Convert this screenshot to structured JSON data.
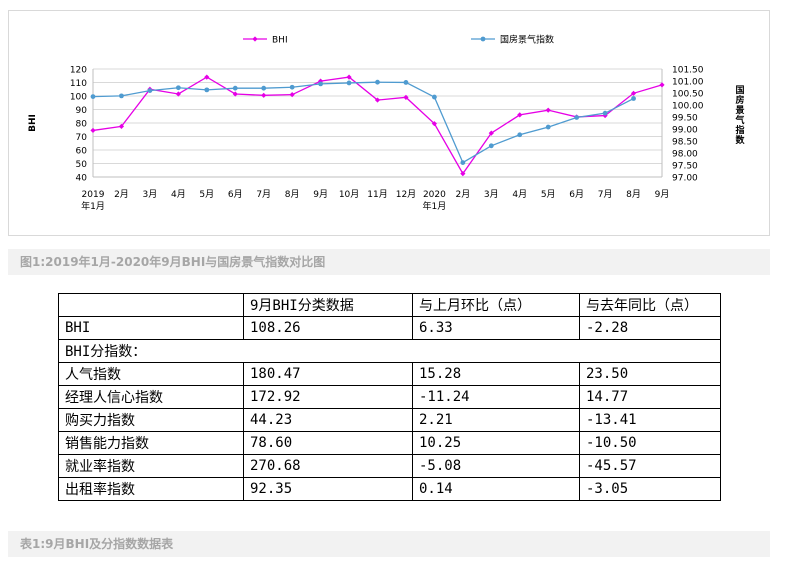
{
  "chart_data": {
    "type": "line",
    "categories": [
      "2019\n年1月",
      "2月",
      "3月",
      "4月",
      "5月",
      "6月",
      "7月",
      "8月",
      "9月",
      "10月",
      "11月",
      "12月",
      "2020\n年1月",
      "2月",
      "3月",
      "4月",
      "5月",
      "6月",
      "7月",
      "8月",
      "9月"
    ],
    "series": [
      {
        "name": "BHI",
        "axis": "left",
        "color": "#e600e6",
        "values": [
          74.5,
          77.5,
          105,
          101.5,
          114,
          101.5,
          100.5,
          101,
          111,
          114,
          97,
          99,
          79.5,
          42.5,
          72.5,
          86,
          89.5,
          84.5,
          85.5,
          102,
          108.26
        ]
      },
      {
        "name": "国房景气指数",
        "axis": "right",
        "color": "#4f9bd0",
        "values": [
          100.35,
          100.38,
          100.6,
          100.72,
          100.63,
          100.7,
          100.7,
          100.74,
          100.88,
          100.92,
          100.95,
          100.94,
          100.33,
          97.6,
          98.3,
          98.76,
          99.08,
          99.48,
          99.66,
          100.27,
          null
        ]
      }
    ],
    "yaxis_left": {
      "label": "BHI",
      "min": 40,
      "max": 120,
      "ticks": [
        "40",
        "50",
        "60",
        "70",
        "80",
        "90",
        "100",
        "110",
        "120"
      ]
    },
    "yaxis_right": {
      "label": "国房景气指数",
      "min": 97.0,
      "max": 101.5,
      "ticks": [
        "97.00",
        "97.50",
        "98.00",
        "98.50",
        "99.00",
        "99.50",
        "100.00",
        "100.50",
        "101.00",
        "101.50"
      ]
    },
    "legend": "top",
    "grid": true
  },
  "captions": {
    "figure": "图1:2019年1月-2020年9月BHI与国房景气指数对比图",
    "table": "表1:9月BHI及分指数数据表"
  },
  "table": {
    "header": [
      "",
      "9月BHI分类数据",
      "与上月环比（点）",
      "与去年同比（点）"
    ],
    "rows": [
      {
        "name": "BHI",
        "value": "108.26",
        "mom": "6.33",
        "yoy": "-2.28"
      },
      {
        "section": "BHI分指数："
      },
      {
        "name": "人气指数",
        "value": "180.47",
        "mom": "15.28",
        "yoy": "23.50"
      },
      {
        "name": "经理人信心指数",
        "value": "172.92",
        "mom": "-11.24",
        "yoy": "14.77"
      },
      {
        "name": "购买力指数",
        "value": "44.23",
        "mom": "2.21",
        "yoy": "-13.41"
      },
      {
        "name": "销售能力指数",
        "value": "78.60",
        "mom": "10.25",
        "yoy": "-10.50"
      },
      {
        "name": "就业率指数",
        "value": "270.68",
        "mom": "-5.08",
        "yoy": "-45.57"
      },
      {
        "name": "出租率指数",
        "value": "92.35",
        "mom": "0.14",
        "yoy": "-3.05"
      }
    ]
  }
}
